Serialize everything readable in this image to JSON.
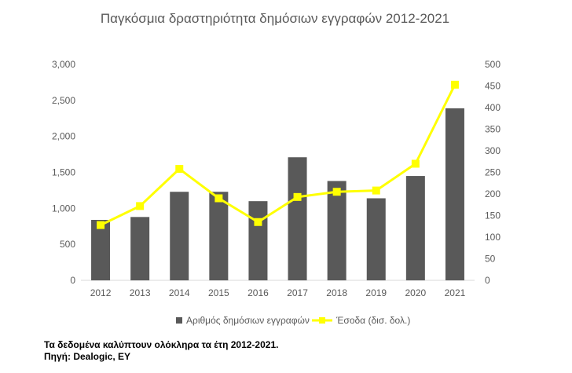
{
  "chart_data": {
    "type": "bar",
    "title": "Παγκόσμια δραστηριότητα δημόσιων εγγραφών 2012-2021",
    "categories": [
      "2012",
      "2013",
      "2014",
      "2015",
      "2016",
      "2017",
      "2018",
      "2019",
      "2020",
      "2021"
    ],
    "series": [
      {
        "name": "Αριθμός δημόσιων εγγραφών",
        "type": "bar",
        "axis": "left",
        "color": "#595959",
        "values": [
          840,
          880,
          1230,
          1230,
          1100,
          1710,
          1380,
          1140,
          1450,
          2390
        ]
      },
      {
        "name": "Έσοδα (δισ. δολ.)",
        "type": "line",
        "axis": "right",
        "color": "#ffff00",
        "values": [
          128,
          172,
          258,
          190,
          135,
          193,
          205,
          208,
          270,
          453
        ]
      }
    ],
    "y_left": {
      "min": 0,
      "max": 3000,
      "ticks": [
        "0",
        "500",
        "1,000",
        "1,500",
        "2,000",
        "2,500",
        "3,000"
      ]
    },
    "y_right": {
      "min": 0,
      "max": 500,
      "ticks": [
        "0",
        "50",
        "100",
        "150",
        "200",
        "250",
        "300",
        "350",
        "400",
        "450",
        "500"
      ]
    },
    "grid": false,
    "legend": "bottom"
  },
  "notes": {
    "coverage": "Τα δεδομένα καλύπτουν ολόκληρα τα έτη 2012-2021.",
    "source": "Πηγή: Dealogic, EY"
  }
}
